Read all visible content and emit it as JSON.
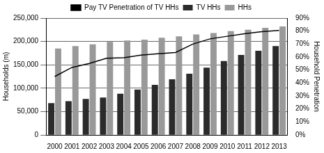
{
  "chart_data": {
    "type": "bar",
    "categories": [
      "2000",
      "2001",
      "2002",
      "2003",
      "2004",
      "2005",
      "2006",
      "2007",
      "2008",
      "2009",
      "2010",
      "2011",
      "2012",
      "2013"
    ],
    "series": [
      {
        "name": "TV HHs",
        "type": "bar",
        "color": "#2b2b2b",
        "values": [
          68000,
          72000,
          77000,
          80000,
          88000,
          97000,
          107000,
          119000,
          131000,
          144000,
          158000,
          171000,
          180000,
          190000
        ]
      },
      {
        "name": "HHs",
        "type": "bar",
        "color": "#999999",
        "values": [
          185000,
          190000,
          194000,
          199000,
          202000,
          204000,
          208000,
          211000,
          215000,
          218000,
          222000,
          225000,
          229000,
          232000
        ]
      },
      {
        "name": "Pay TV Penetration of TV HHs",
        "type": "line",
        "color": "#000000",
        "axis": "y2",
        "values": [
          45,
          52,
          55,
          59,
          59.5,
          61.5,
          62.5,
          63.5,
          70,
          74,
          76,
          78,
          79.5,
          80.5
        ]
      }
    ],
    "y_label": "Households (m)",
    "y2_label": "Household Penetration",
    "ylim": [
      0,
      250000
    ],
    "yticks": [
      0,
      {
        "value": 50000,
        "label": "50,000"
      },
      {
        "value": 100000,
        "label": "100,000"
      },
      {
        "value": 150000,
        "label": "150,000"
      },
      {
        "value": 200000,
        "label": "200,000"
      },
      {
        "value": 250000,
        "label": "250,000"
      }
    ],
    "y2lim": [
      0,
      90
    ],
    "y2ticks": [
      {
        "value": 0,
        "label": "0%"
      },
      {
        "value": 10,
        "label": "10%"
      },
      {
        "value": 20,
        "label": "20%"
      },
      {
        "value": 30,
        "label": "30%"
      },
      {
        "value": 40,
        "label": "40%"
      },
      {
        "value": 50,
        "label": "50%"
      },
      {
        "value": 60,
        "label": "60%"
      },
      {
        "value": 70,
        "label": "70%"
      },
      {
        "value": 80,
        "label": "80%"
      },
      {
        "value": 90,
        "label": "90%"
      }
    ],
    "grid": true,
    "legend": "top"
  }
}
